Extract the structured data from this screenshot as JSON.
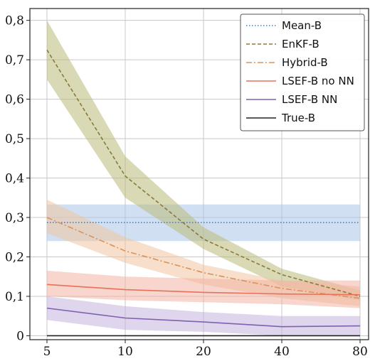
{
  "chart_data": {
    "type": "line",
    "x": [
      5,
      10,
      20,
      40,
      80
    ],
    "x_tick_labels": [
      "5",
      "10",
      "20",
      "40",
      "80"
    ],
    "xscale": "categorical",
    "ylim": [
      -0.01,
      0.83
    ],
    "y_ticks": [
      0,
      0.1,
      0.2,
      0.3,
      0.4,
      0.5,
      0.6,
      0.7,
      0.8
    ],
    "y_tick_labels": [
      "0",
      "0,1",
      "0,2",
      "0,3",
      "0,4",
      "0,5",
      "0,6",
      "0,7",
      "0,8"
    ],
    "grid": true,
    "legend_position": "top-right",
    "series": [
      {
        "name": "Mean-B",
        "color": "#4c7fc0",
        "dash": "dotted",
        "values": [
          0.287,
          0.287,
          0.287,
          0.287,
          0.287
        ],
        "lower": [
          0.24,
          0.24,
          0.24,
          0.24,
          0.24
        ],
        "upper": [
          0.333,
          0.333,
          0.333,
          0.333,
          0.333
        ],
        "band_color": "#a9c6e8"
      },
      {
        "name": "EnKF-B",
        "color": "#8a7a3a",
        "dash": "dashed",
        "values": [
          0.725,
          0.405,
          0.245,
          0.155,
          0.1
        ],
        "lower": [
          0.65,
          0.35,
          0.22,
          0.125,
          0.09
        ],
        "upper": [
          0.8,
          0.455,
          0.275,
          0.17,
          0.115
        ],
        "band_color": "#b9b979"
      },
      {
        "name": "Hybrid-B",
        "color": "#d9925a",
        "dash": "dashdot",
        "values": [
          0.3,
          0.215,
          0.16,
          0.12,
          0.095
        ],
        "lower": [
          0.26,
          0.185,
          0.13,
          0.095,
          0.075
        ],
        "upper": [
          0.345,
          0.25,
          0.18,
          0.14,
          0.125
        ],
        "band_color": "#f0c4a0"
      },
      {
        "name": "LSEF-B no NN",
        "color": "#e8715a",
        "dash": "solid",
        "values": [
          0.13,
          0.117,
          0.11,
          0.106,
          0.104
        ],
        "lower": [
          0.1,
          0.09,
          0.085,
          0.08,
          0.07
        ],
        "upper": [
          0.165,
          0.15,
          0.145,
          0.14,
          0.14
        ],
        "band_color": "#f2b3a4"
      },
      {
        "name": "LSEF-B NN",
        "color": "#8060b0",
        "dash": "solid",
        "values": [
          0.07,
          0.045,
          0.035,
          0.023,
          0.025
        ],
        "lower": [
          0.04,
          0.015,
          0.01,
          0.0,
          0.0
        ],
        "upper": [
          0.1,
          0.075,
          0.06,
          0.05,
          0.05
        ],
        "band_color": "#c4b2dc"
      },
      {
        "name": "True-B",
        "color": "#222222",
        "dash": "solid",
        "values": [
          0,
          0,
          0,
          0,
          0
        ]
      }
    ]
  }
}
